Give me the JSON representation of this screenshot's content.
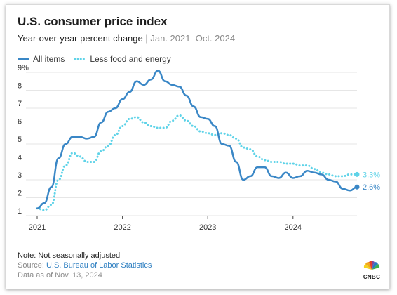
{
  "chart_data": {
    "type": "line",
    "title": "U.S. consumer price index",
    "subtitle": "Year-over-year percent change",
    "subtitle_range": "Jan. 2021–Oct. 2024",
    "xlabel": "",
    "ylabel": "",
    "x_start": "2021-01",
    "x_end": "2024-10",
    "x_ticks": [
      "2021",
      "2022",
      "2023",
      "2024"
    ],
    "y_ticks": [
      "1",
      "2",
      "3",
      "4",
      "5",
      "6",
      "7",
      "8",
      "9%"
    ],
    "ylim": [
      1,
      9
    ],
    "grid": "horizontal",
    "legend_position": "top-left",
    "x": [
      "2021-01",
      "2021-02",
      "2021-03",
      "2021-04",
      "2021-05",
      "2021-06",
      "2021-07",
      "2021-08",
      "2021-09",
      "2021-10",
      "2021-11",
      "2021-12",
      "2022-01",
      "2022-02",
      "2022-03",
      "2022-04",
      "2022-05",
      "2022-06",
      "2022-07",
      "2022-08",
      "2022-09",
      "2022-10",
      "2022-11",
      "2022-12",
      "2023-01",
      "2023-02",
      "2023-03",
      "2023-04",
      "2023-05",
      "2023-06",
      "2023-07",
      "2023-08",
      "2023-09",
      "2023-10",
      "2023-11",
      "2023-12",
      "2024-01",
      "2024-02",
      "2024-03",
      "2024-04",
      "2024-05",
      "2024-06",
      "2024-07",
      "2024-08",
      "2024-09",
      "2024-10"
    ],
    "series": [
      {
        "name": "All items",
        "color": "#3a87c6",
        "style": "solid",
        "end_label": "2.6%",
        "values": [
          1.4,
          1.7,
          2.6,
          4.2,
          5.0,
          5.4,
          5.4,
          5.3,
          5.4,
          6.2,
          6.8,
          7.0,
          7.5,
          7.9,
          8.5,
          8.3,
          8.6,
          9.1,
          8.5,
          8.3,
          8.2,
          7.7,
          7.1,
          6.5,
          6.4,
          6.0,
          5.0,
          4.9,
          4.0,
          3.0,
          3.2,
          3.7,
          3.7,
          3.2,
          3.1,
          3.4,
          3.1,
          3.2,
          3.5,
          3.4,
          3.3,
          3.0,
          2.9,
          2.5,
          2.4,
          2.6
        ]
      },
      {
        "name": "Less food and energy",
        "color": "#5fd3e8",
        "style": "dotted",
        "end_label": "3.3%",
        "values": [
          1.4,
          1.3,
          1.6,
          3.0,
          3.8,
          4.5,
          4.3,
          4.0,
          4.0,
          4.6,
          4.9,
          5.5,
          6.0,
          6.4,
          6.5,
          6.2,
          6.0,
          5.9,
          5.9,
          6.3,
          6.6,
          6.3,
          6.0,
          5.7,
          5.6,
          5.5,
          5.6,
          5.5,
          5.3,
          4.8,
          4.7,
          4.3,
          4.1,
          4.0,
          4.0,
          3.9,
          3.9,
          3.8,
          3.8,
          3.6,
          3.4,
          3.3,
          3.2,
          3.2,
          3.3,
          3.3
        ]
      }
    ]
  },
  "notes": {
    "note": "Note: Not seasonally adjusted",
    "source_prefix": "Source: ",
    "source_link": "U.S. Bureau of Labor Statistics",
    "as_of": "Data as of Nov. 13, 2024"
  },
  "logo": {
    "text": "CNBC"
  }
}
